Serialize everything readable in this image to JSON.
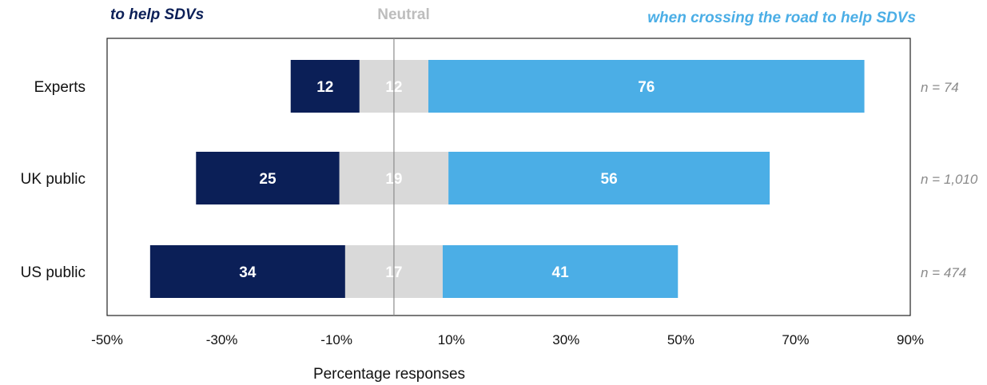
{
  "chart_data": {
    "type": "bar",
    "orientation": "horizontal",
    "stacked": "diverging",
    "headers": {
      "left": "to help SDVs",
      "center": "Neutral",
      "right": "when crossing the road to help SDVs"
    },
    "categories": [
      "Experts",
      "UK public",
      "US public"
    ],
    "series": [
      {
        "key": "negative",
        "values": [
          12,
          25,
          34
        ],
        "color": "#0b1f57"
      },
      {
        "key": "neutral",
        "values": [
          12,
          19,
          17
        ],
        "color": "#d9d9d9"
      },
      {
        "key": "positive",
        "values": [
          76,
          56,
          41
        ],
        "color": "#4baee6"
      }
    ],
    "sample_sizes": [
      "n = 74",
      "n = 1,010",
      "n = 474"
    ],
    "xlabel": "Percentage responses",
    "xlim": [
      -50,
      90
    ],
    "xticks": [
      -50,
      -30,
      -10,
      10,
      30,
      50,
      70,
      90
    ],
    "xtick_labels": [
      "-50%",
      "-30%",
      "-10%",
      "10%",
      "30%",
      "50%",
      "70%",
      "90%"
    ],
    "grid": false
  }
}
